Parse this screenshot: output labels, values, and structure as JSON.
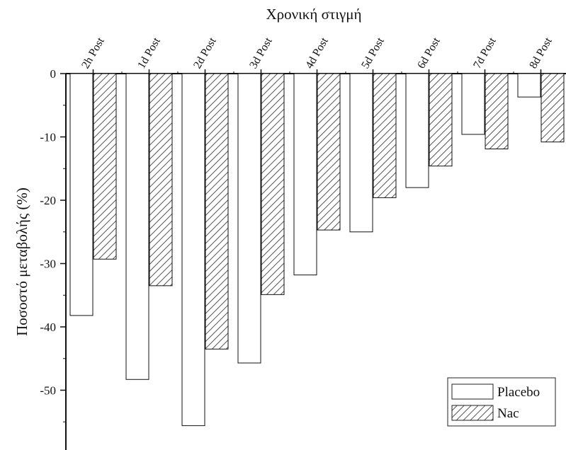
{
  "chart_data": {
    "type": "bar",
    "title": "Χρονική στιγμή",
    "xlabel": "Χρονική στιγμή",
    "ylabel": "Ποσοστό μεταβολής (%)",
    "categories": [
      "2h Post",
      "1d Post",
      "2d Post",
      "3d Post",
      "4d Post",
      "5d Post",
      "6d Post",
      "7d Post",
      "8d Post"
    ],
    "series": [
      {
        "name": "Placebo",
        "values": [
          -38.2,
          -48.3,
          -55.6,
          -45.7,
          -31.8,
          -25.0,
          -18.0,
          -9.6,
          -3.7
        ],
        "fill": "#ffffff"
      },
      {
        "name": "Nac",
        "values": [
          -29.3,
          -33.5,
          -43.5,
          -34.9,
          -24.7,
          -19.6,
          -14.6,
          -11.9,
          -10.8
        ],
        "fill": "hatch"
      }
    ],
    "yticks": [
      "0",
      "-10",
      "-20",
      "-30",
      "-40",
      "-50"
    ],
    "ylim": [
      -59,
      0
    ],
    "legend_position": "bottom-right",
    "grid": false
  }
}
